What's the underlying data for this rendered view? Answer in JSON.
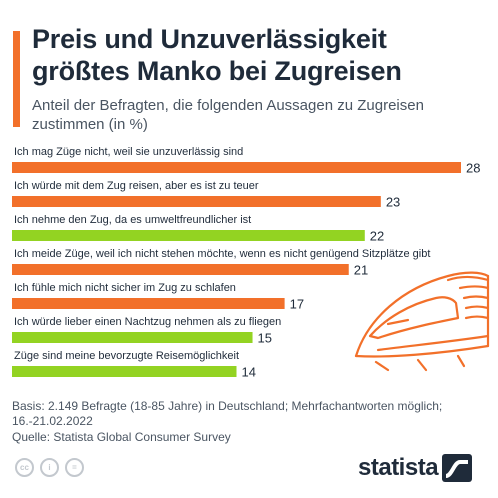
{
  "title": "Preis und Unzuverlässigkeit größtes Manko bei Zugreisen",
  "subtitle": "Anteil der Befragten, die folgenden Aussagen zu Zugreisen zustimmen (in %)",
  "colors": {
    "accent": "#f2702a",
    "orange": "#f2702a",
    "green": "#93d322"
  },
  "chart_data": {
    "type": "bar",
    "orientation": "horizontal",
    "title": "Preis und Unzuverlässigkeit größtes Manko bei Zugreisen",
    "xlabel": "",
    "ylabel": "",
    "xlim": [
      0,
      28
    ],
    "categories": [
      "Ich mag Züge nicht, weil sie unzuverlässig sind",
      "Ich würde mit dem Zug reisen, aber es ist zu teuer",
      "Ich nehme den Zug, da es umweltfreundlicher ist",
      "Ich meide Züge, weil ich nicht stehen möchte, wenn es nicht genügend Sitzplätze gibt",
      "Ich fühle mich nicht sicher im Zug zu schlafen",
      "Ich würde lieber einen Nachtzug nehmen als zu fliegen",
      "Züge sind meine bevorzugte Reisemöglichkeit"
    ],
    "values": [
      28,
      23,
      22,
      21,
      17,
      15,
      14
    ],
    "bar_colors": [
      "orange",
      "orange",
      "green",
      "orange",
      "orange",
      "green",
      "green"
    ]
  },
  "notes": {
    "basis": "Basis: 2.149 Befragte (18-85 Jahre) in Deutschland; Mehrfachantworten möglich; 16.-21.02.2022",
    "source": "Quelle: Statista Global Consumer Survey"
  },
  "license_icons": [
    "cc-icon",
    "info-icon",
    "equals-icon"
  ],
  "brand": {
    "name": "statista"
  }
}
